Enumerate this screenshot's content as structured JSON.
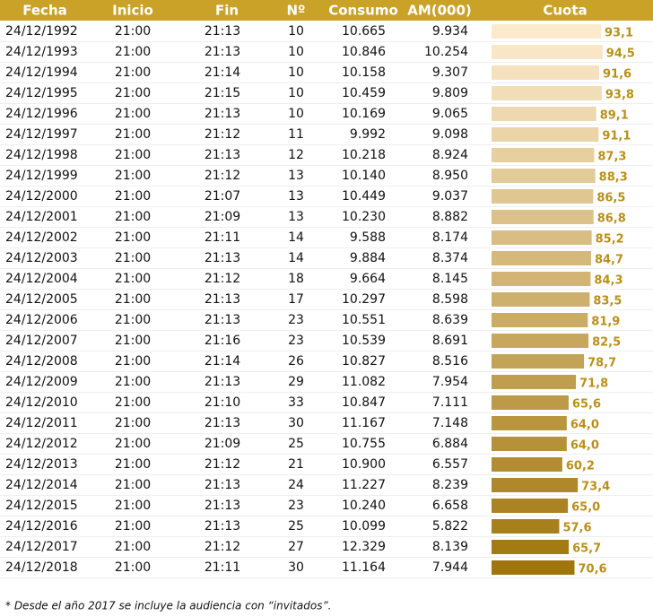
{
  "table": {
    "headers": [
      "Fecha",
      "Inicio",
      "Fin",
      "Nº",
      "Consumo",
      "AM(000)",
      "Cuota"
    ],
    "rows": [
      [
        "24/12/1992",
        "21:00",
        "21:13",
        "10",
        "10.665",
        "9.934"
      ],
      [
        "24/12/1993",
        "21:00",
        "21:13",
        "10",
        "10.846",
        "10.254"
      ],
      [
        "24/12/1994",
        "21:00",
        "21:14",
        "10",
        "10.158",
        "9.307"
      ],
      [
        "24/12/1995",
        "21:00",
        "21:15",
        "10",
        "10.459",
        "9.809"
      ],
      [
        "24/12/1996",
        "21:00",
        "21:13",
        "10",
        "10.169",
        "9.065"
      ],
      [
        "24/12/1997",
        "21:00",
        "21:12",
        "11",
        "9.992",
        "9.098"
      ],
      [
        "24/12/1998",
        "21:00",
        "21:13",
        "12",
        "10.218",
        "8.924"
      ],
      [
        "24/12/1999",
        "21:00",
        "21:12",
        "13",
        "10.140",
        "8.950"
      ],
      [
        "24/12/2000",
        "21:00",
        "21:07",
        "13",
        "10.449",
        "9.037"
      ],
      [
        "24/12/2001",
        "21:00",
        "21:09",
        "13",
        "10.230",
        "8.882"
      ],
      [
        "24/12/2002",
        "21:00",
        "21:11",
        "14",
        "9.588",
        "8.174"
      ],
      [
        "24/12/2003",
        "21:00",
        "21:13",
        "14",
        "9.884",
        "8.374"
      ],
      [
        "24/12/2004",
        "21:00",
        "21:12",
        "18",
        "9.664",
        "8.145"
      ],
      [
        "24/12/2005",
        "21:00",
        "21:13",
        "17",
        "10.297",
        "8.598"
      ],
      [
        "24/12/2006",
        "21:00",
        "21:13",
        "23",
        "10.551",
        "8.639"
      ],
      [
        "24/12/2007",
        "21:00",
        "21:16",
        "23",
        "10.539",
        "8.691"
      ],
      [
        "24/12/2008",
        "21:00",
        "21:14",
        "26",
        "10.827",
        "8.516"
      ],
      [
        "24/12/2009",
        "21:00",
        "21:13",
        "29",
        "11.082",
        "7.954"
      ],
      [
        "24/12/2010",
        "21:00",
        "21:10",
        "33",
        "10.847",
        "7.111"
      ],
      [
        "24/12/2011",
        "21:00",
        "21:13",
        "30",
        "11.167",
        "7.148"
      ],
      [
        "24/12/2012",
        "21:00",
        "21:09",
        "25",
        "10.755",
        "6.884"
      ],
      [
        "24/12/2013",
        "21:00",
        "21:12",
        "21",
        "10.900",
        "6.557"
      ],
      [
        "24/12/2014",
        "21:00",
        "21:13",
        "24",
        "11.227",
        "8.239"
      ],
      [
        "24/12/2015",
        "21:00",
        "21:13",
        "23",
        "10.240",
        "6.658"
      ],
      [
        "24/12/2016",
        "21:00",
        "21:13",
        "25",
        "10.099",
        "5.822"
      ],
      [
        "24/12/2017",
        "21:00",
        "21:12",
        "27",
        "12.329",
        "8.139"
      ],
      [
        "24/12/2018",
        "21:00",
        "21:11",
        "30",
        "11.164",
        "7.944"
      ]
    ],
    "cuota": {
      "values": [
        93.1,
        94.5,
        91.6,
        93.8,
        89.1,
        91.1,
        87.3,
        88.3,
        86.5,
        86.8,
        85.2,
        84.7,
        84.3,
        83.5,
        81.9,
        82.5,
        78.7,
        71.8,
        65.6,
        64.0,
        64.0,
        60.2,
        73.4,
        65.0,
        57.6,
        65.7,
        70.6
      ],
      "labels": [
        "93,1",
        "94,5",
        "91,6",
        "93,8",
        "89,1",
        "91,1",
        "87,3",
        "88,3",
        "86,5",
        "86,8",
        "85,2",
        "84,7",
        "84,3",
        "83,5",
        "81,9",
        "82,5",
        "78,7",
        "71,8",
        "65,6",
        "64,0",
        "64,0",
        "60,2",
        "73,4",
        "65,0",
        "57,6",
        "65,7",
        "70,6"
      ]
    }
  },
  "footnote": "* Desde el año 2017 se incluye la audiencia con “invitados”."
}
